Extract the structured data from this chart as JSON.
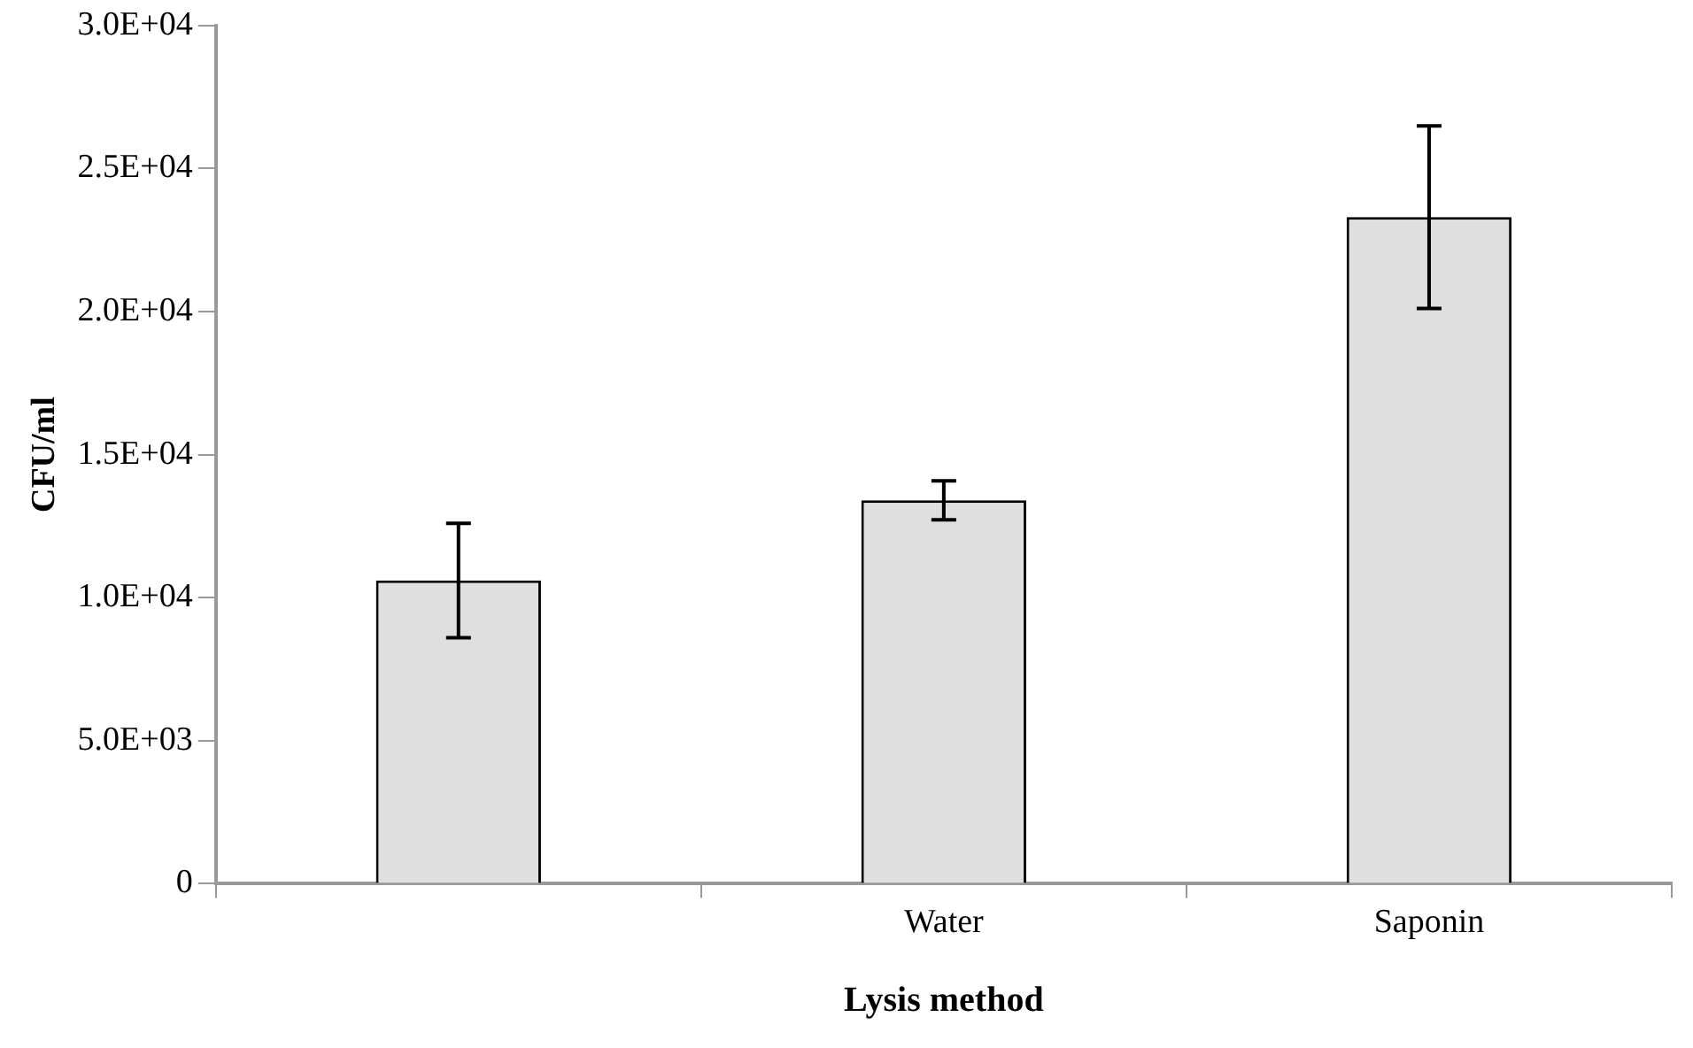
{
  "chart_data": {
    "type": "bar",
    "xlabel": "Lysis method",
    "ylabel": "CFU/ml",
    "categories": [
      null,
      "Water",
      "Saponin"
    ],
    "values": [
      10600,
      13400,
      23300
    ],
    "color": "#dfdfdf",
    "errors": [
      2000,
      680,
      3190
    ],
    "ylim": [
      0,
      30000
    ],
    "yticks": [
      0,
      {
        "value": 5000,
        "label": "5.0E+03"
      },
      {
        "value": 10000,
        "label": "1.0E+04"
      },
      {
        "value": 15000,
        "label": "1.5E+04"
      },
      {
        "value": 20000,
        "label": "2.0E+04"
      },
      {
        "value": 25000,
        "label": "2.5E+04"
      },
      {
        "value": 30000,
        "label": "3.0E+04"
      }
    ],
    "legend": false
  }
}
